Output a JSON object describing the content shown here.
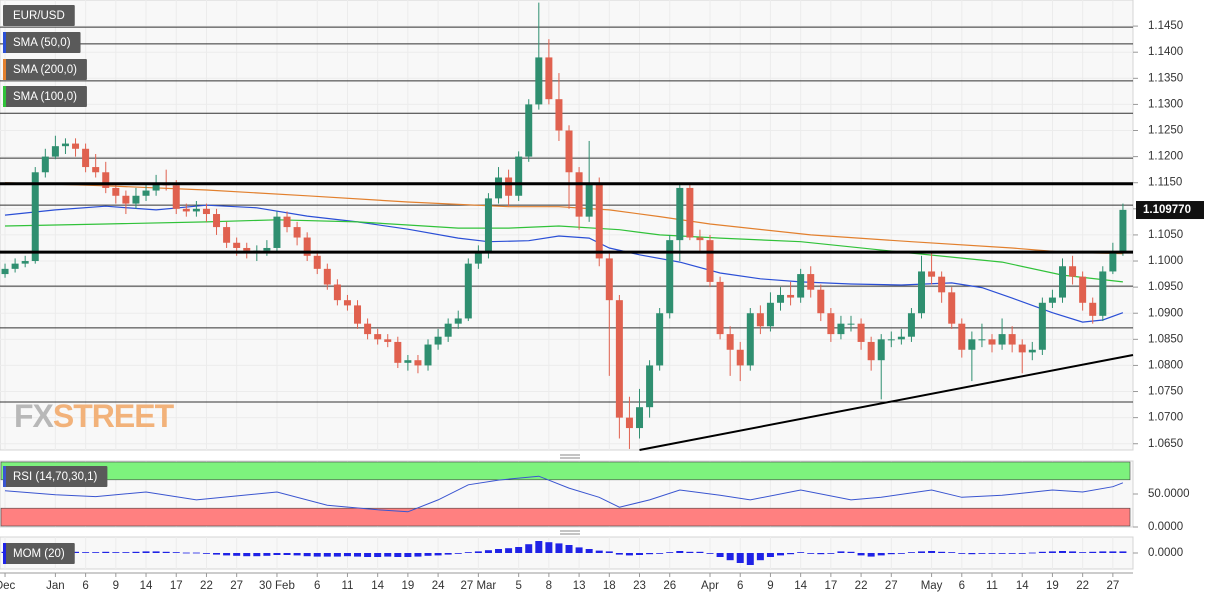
{
  "chart_data": [
    {
      "type": "candlestick",
      "series": {
        "name": "EUR/USD",
        "up_color": "#2f8f70",
        "down_color": "#e0614f",
        "open": [
          1.0975,
          1.0985,
          1.0995,
          1.1,
          1.117,
          1.12,
          1.122,
          1.1225,
          1.1215,
          1.118,
          1.117,
          1.114,
          1.1125,
          1.111,
          1.1125,
          1.1135,
          1.115,
          1.1145,
          1.11,
          1.1095,
          1.11,
          1.109,
          1.1065,
          1.1035,
          1.1025,
          1.102,
          1.102,
          1.1025,
          1.1085,
          1.1065,
          1.1045,
          1.101,
          1.0985,
          1.0955,
          1.0925,
          1.0915,
          1.088,
          1.086,
          1.085,
          1.0845,
          1.0805,
          1.081,
          1.08,
          1.084,
          1.0855,
          1.088,
          1.089,
          1.0995,
          1.1015,
          1.112,
          1.116,
          1.1125,
          1.12,
          1.13,
          1.139,
          1.131,
          1.125,
          1.117,
          1.1085,
          1.115,
          1.1005,
          1.0925,
          1.07,
          1.068,
          1.072,
          1.08,
          1.09,
          1.104,
          1.114,
          1.1045,
          1.104,
          1.096,
          1.086,
          1.083,
          1.08,
          1.09,
          1.0875,
          1.092,
          1.0935,
          1.093,
          1.0975,
          1.0945,
          1.09,
          1.086,
          1.088,
          1.088,
          1.0845,
          1.081,
          1.085,
          1.085,
          1.0855,
          1.09,
          1.098,
          1.097,
          1.094,
          1.088,
          1.083,
          1.085,
          1.085,
          1.084,
          1.086,
          1.084,
          1.0825,
          1.083,
          1.092,
          1.093,
          1.099,
          1.097,
          1.092,
          1.0895,
          1.098,
          1.1015
        ],
        "high": [
          1.0995,
          1.1005,
          1.101,
          1.118,
          1.1215,
          1.124,
          1.1235,
          1.1235,
          1.1225,
          1.1205,
          1.119,
          1.115,
          1.1135,
          1.114,
          1.115,
          1.1165,
          1.1175,
          1.1155,
          1.111,
          1.1115,
          1.111,
          1.11,
          1.1075,
          1.1045,
          1.1035,
          1.103,
          1.104,
          1.1095,
          1.1095,
          1.1075,
          1.1055,
          1.102,
          1.0995,
          1.0965,
          1.0935,
          1.0925,
          1.089,
          1.087,
          1.086,
          1.0855,
          1.082,
          1.082,
          1.085,
          1.087,
          1.089,
          1.0905,
          1.1005,
          1.103,
          1.113,
          1.118,
          1.1175,
          1.121,
          1.131,
          1.1495,
          1.1425,
          1.136,
          1.126,
          1.118,
          1.123,
          1.116,
          1.1015,
          1.0935,
          1.074,
          1.0755,
          1.081,
          1.091,
          1.105,
          1.115,
          1.1148,
          1.106,
          1.105,
          1.097,
          1.0875,
          1.0845,
          1.091,
          1.0915,
          1.094,
          1.095,
          1.096,
          1.0985,
          1.099,
          1.0955,
          1.091,
          1.0895,
          1.0895,
          1.089,
          1.0855,
          1.086,
          1.0865,
          1.087,
          1.091,
          1.101,
          1.1015,
          1.098,
          1.095,
          1.089,
          1.0865,
          1.088,
          1.086,
          1.089,
          1.0875,
          1.085,
          1.0845,
          1.093,
          1.0945,
          1.1005,
          1.101,
          1.098,
          1.093,
          1.099,
          1.1035,
          1.111
        ],
        "low": [
          1.0968,
          1.0978,
          1.0988,
          1.0995,
          1.116,
          1.1195,
          1.1205,
          1.12,
          1.117,
          1.116,
          1.113,
          1.111,
          1.109,
          1.11,
          1.1115,
          1.1125,
          1.1135,
          1.109,
          1.1085,
          1.1085,
          1.1075,
          1.105,
          1.1025,
          1.101,
          1.1005,
          1.1,
          1.101,
          1.1015,
          1.1055,
          1.103,
          1.1,
          1.0975,
          1.0945,
          1.0915,
          1.0905,
          1.087,
          1.085,
          1.084,
          1.0835,
          1.0795,
          1.079,
          1.0785,
          1.079,
          1.083,
          1.0845,
          1.087,
          1.0885,
          1.0985,
          1.1005,
          1.111,
          1.1105,
          1.1115,
          1.119,
          1.129,
          1.13,
          1.123,
          1.11,
          1.106,
          1.1075,
          1.099,
          1.078,
          1.066,
          1.064,
          1.066,
          1.07,
          1.079,
          1.089,
          1.1,
          1.104,
          1.102,
          1.095,
          1.085,
          1.078,
          1.077,
          1.079,
          1.086,
          1.0865,
          1.0905,
          1.0915,
          1.092,
          1.093,
          1.0885,
          1.0845,
          1.085,
          1.0865,
          1.083,
          1.079,
          1.0735,
          1.0835,
          1.084,
          1.0845,
          1.089,
          1.0955,
          1.092,
          1.087,
          1.0815,
          1.077,
          1.0835,
          1.0825,
          1.083,
          1.0825,
          1.0785,
          1.081,
          1.082,
          1.091,
          1.092,
          1.0955,
          1.0905,
          1.088,
          1.0885,
          1.0975,
          1.101
        ],
        "close": [
          1.0985,
          1.0995,
          1.1,
          1.117,
          1.12,
          1.122,
          1.1225,
          1.1215,
          1.118,
          1.117,
          1.114,
          1.1125,
          1.111,
          1.1125,
          1.1135,
          1.115,
          1.1145,
          1.11,
          1.1095,
          1.11,
          1.109,
          1.1065,
          1.1035,
          1.1025,
          1.102,
          1.102,
          1.1025,
          1.1085,
          1.1065,
          1.1045,
          1.101,
          1.0985,
          1.0955,
          1.0925,
          1.0915,
          1.088,
          1.086,
          1.085,
          1.0845,
          1.0805,
          1.081,
          1.08,
          1.084,
          1.0855,
          1.088,
          1.089,
          1.0995,
          1.1015,
          1.112,
          1.116,
          1.1125,
          1.12,
          1.13,
          1.139,
          1.131,
          1.125,
          1.117,
          1.1085,
          1.115,
          1.1005,
          1.0925,
          1.07,
          1.068,
          1.072,
          1.08,
          1.09,
          1.104,
          1.114,
          1.1045,
          1.104,
          1.096,
          1.086,
          1.083,
          1.08,
          1.09,
          1.0875,
          1.092,
          1.0935,
          1.093,
          1.0975,
          1.0945,
          1.09,
          1.086,
          1.088,
          1.088,
          1.0845,
          1.081,
          1.085,
          1.085,
          1.0855,
          1.09,
          1.098,
          1.097,
          1.094,
          1.088,
          1.083,
          1.085,
          1.085,
          1.084,
          1.086,
          1.084,
          1.0825,
          1.083,
          1.092,
          1.093,
          1.099,
          1.097,
          1.092,
          1.0895,
          1.098,
          1.1015,
          1.1098
        ]
      },
      "lines": [
        {
          "name": "SMA (50,0)",
          "color": "#2b4fd6",
          "x": [
            0,
            5,
            10,
            15,
            20,
            25,
            30,
            35,
            40,
            45,
            48,
            52,
            55,
            58,
            60,
            63,
            67,
            71,
            75,
            79,
            84,
            89,
            94,
            97,
            100,
            104,
            107,
            109,
            111
          ],
          "values": [
            1.1088,
            1.1098,
            1.1105,
            1.1098,
            1.1107,
            1.1102,
            1.1086,
            1.1075,
            1.1061,
            1.1044,
            1.1037,
            1.1039,
            1.1048,
            1.1044,
            1.1025,
            1.1012,
            1.0998,
            1.0977,
            1.0966,
            1.096,
            1.0956,
            1.0954,
            1.0958,
            1.0949,
            1.0929,
            1.0901,
            1.0883,
            1.0887,
            1.0901
          ]
        },
        {
          "name": "SMA (200,0)",
          "color": "#e2802e",
          "x": [
            0,
            10,
            20,
            30,
            40,
            50,
            55,
            60,
            65,
            70,
            80,
            90,
            100,
            105,
            111
          ],
          "values": [
            1.115,
            1.1144,
            1.1136,
            1.1125,
            1.1113,
            1.1104,
            1.1104,
            1.1098,
            1.1085,
            1.1071,
            1.105,
            1.1037,
            1.1025,
            1.1017,
            1.1014
          ]
        },
        {
          "name": "SMA (100,0)",
          "color": "#31c23a",
          "x": [
            0,
            10,
            20,
            27,
            35,
            40,
            45,
            50,
            55,
            61,
            65,
            71,
            79,
            89,
            99,
            105,
            111
          ],
          "values": [
            1.1067,
            1.1071,
            1.1075,
            1.1079,
            1.1075,
            1.1069,
            1.1063,
            1.1063,
            1.1067,
            1.106,
            1.105,
            1.1044,
            1.1037,
            1.1017,
            1.0998,
            1.0973,
            1.096
          ]
        }
      ],
      "levels": [
        1.1448,
        1.1416,
        1.1345,
        1.1283,
        1.1197,
        1.1107,
        1.0952,
        1.0872,
        1.073
      ],
      "key_levels": [
        1.1148,
        1.1017
      ],
      "trendline": {
        "x": [
          63,
          112
        ],
        "values": [
          1.0638,
          1.082
        ]
      },
      "last_price": {
        "value": 1.10977,
        "label": "1.109770"
      },
      "watermark": [
        "FX",
        "STREET"
      ],
      "ylim": [
        1.0638,
        1.15
      ],
      "yticks": [
        {
          "value": 1.065,
          "label": "1.0650"
        },
        {
          "value": 1.07,
          "label": "1.0700"
        },
        {
          "value": 1.075,
          "label": "1.0750"
        },
        {
          "value": 1.08,
          "label": "1.0800"
        },
        {
          "value": 1.085,
          "label": "1.0850"
        },
        {
          "value": 1.09,
          "label": "1.0900"
        },
        {
          "value": 1.095,
          "label": "1.0950"
        },
        {
          "value": 1.1,
          "label": "1.1000"
        },
        {
          "value": 1.105,
          "label": "1.1050"
        },
        {
          "value": 1.11,
          "label": "1.1100"
        },
        {
          "value": 1.115,
          "label": "1.1150"
        },
        {
          "value": 1.12,
          "label": "1.1200"
        },
        {
          "value": 1.125,
          "label": "1.1250"
        },
        {
          "value": 1.13,
          "label": "1.1300"
        },
        {
          "value": 1.135,
          "label": "1.1350"
        },
        {
          "value": 1.14,
          "label": "1.1400"
        },
        {
          "value": 1.145,
          "label": "1.1450"
        }
      ]
    },
    {
      "type": "line",
      "name": "RSI (14,70,30,1)",
      "color": "#3a55d0",
      "x": [
        0,
        5,
        9,
        14,
        19,
        27,
        32,
        37,
        40,
        43,
        46,
        49,
        53,
        56,
        59,
        61,
        64,
        67,
        71,
        74,
        79,
        84,
        87,
        92,
        95,
        99,
        104,
        107,
        110,
        111
      ],
      "values": [
        55,
        49,
        46,
        53,
        41,
        53,
        33,
        26,
        23,
        41,
        64,
        71,
        77,
        59,
        45,
        30,
        41,
        56,
        48,
        41,
        56,
        41,
        45,
        56,
        45,
        48,
        56,
        53,
        61,
        67
      ],
      "bands": [
        {
          "from": 70,
          "to": 100,
          "color": "#7df27d"
        },
        {
          "from": 0,
          "to": 30,
          "color": "#ff8080"
        }
      ],
      "ylim": [
        0,
        100
      ],
      "yticks": [
        {
          "value": 50,
          "label": "50.0000"
        },
        {
          "value": 0,
          "label": "0.0000"
        }
      ]
    },
    {
      "type": "bar",
      "name": "MOM (20)",
      "color": "#1f22e6",
      "values": [
        0.003,
        0.003,
        0.002,
        0.004,
        0.005,
        0.005,
        0.004,
        0.003,
        0.002,
        0.002,
        0.003,
        0.002,
        0.002,
        0.003,
        0.004,
        0.004,
        0.003,
        0.002,
        0.001,
        0.001,
        -0.002,
        -0.004,
        -0.006,
        -0.007,
        -0.008,
        -0.008,
        -0.007,
        -0.005,
        -0.005,
        -0.006,
        -0.008,
        -0.009,
        -0.009,
        -0.009,
        -0.008,
        -0.009,
        -0.01,
        -0.01,
        -0.009,
        -0.01,
        -0.01,
        -0.009,
        -0.007,
        -0.006,
        -0.004,
        -0.002,
        0.002,
        0.004,
        0.007,
        0.01,
        0.012,
        0.015,
        0.022,
        0.03,
        0.027,
        0.024,
        0.02,
        0.014,
        0.01,
        0.006,
        0.004,
        -0.004,
        -0.006,
        -0.005,
        -0.003,
        -0.002,
        0.002,
        0.005,
        0.003,
        0.003,
        -0.001,
        -0.01,
        -0.018,
        -0.025,
        -0.03,
        -0.018,
        -0.01,
        -0.006,
        -0.003,
        0.002,
        -0.002,
        -0.003,
        -0.002,
        0.004,
        0.003,
        -0.006,
        -0.009,
        -0.006,
        -0.003,
        -0.002,
        0.002,
        0.004,
        0.005,
        0.003,
        0.002,
        -0.002,
        -0.003,
        -0.002,
        -0.002,
        -0.001,
        -0.002,
        -0.002,
        0.001,
        0.003,
        0.004,
        0.005,
        0.004,
        0.002,
        0.003,
        0.004,
        0.004,
        0.004
      ],
      "ylim": [
        -0.04,
        0.04
      ],
      "yticks": [
        {
          "value": 0,
          "label": "0.0000"
        }
      ],
      "xlim": [
        -0.5,
        112
      ],
      "xticks": [
        {
          "value": 0,
          "label": "Dec"
        },
        {
          "value": 5,
          "label": "Jan"
        },
        {
          "value": 8,
          "label": "6"
        },
        {
          "value": 11,
          "label": "9"
        },
        {
          "value": 14,
          "label": "14"
        },
        {
          "value": 17,
          "label": "17"
        },
        {
          "value": 20,
          "label": "22"
        },
        {
          "value": 23,
          "label": "27"
        },
        {
          "value": 27,
          "label": "30 Feb"
        },
        {
          "value": 31,
          "label": "6"
        },
        {
          "value": 34,
          "label": "11"
        },
        {
          "value": 37,
          "label": "14"
        },
        {
          "value": 40,
          "label": "19"
        },
        {
          "value": 43,
          "label": "24"
        },
        {
          "value": 47,
          "label": "27 Mar"
        },
        {
          "value": 51,
          "label": "5"
        },
        {
          "value": 54,
          "label": "8"
        },
        {
          "value": 57,
          "label": "13"
        },
        {
          "value": 60,
          "label": "18"
        },
        {
          "value": 63,
          "label": "23"
        },
        {
          "value": 66,
          "label": "26"
        },
        {
          "value": 70,
          "label": "Apr"
        },
        {
          "value": 73,
          "label": "6"
        },
        {
          "value": 76,
          "label": "9"
        },
        {
          "value": 79,
          "label": "14"
        },
        {
          "value": 82,
          "label": "17"
        },
        {
          "value": 85,
          "label": "22"
        },
        {
          "value": 88,
          "label": "27"
        },
        {
          "value": 92,
          "label": "May"
        },
        {
          "value": 95,
          "label": "6"
        },
        {
          "value": 98,
          "label": "11"
        },
        {
          "value": 101,
          "label": "14"
        },
        {
          "value": 104,
          "label": "19"
        },
        {
          "value": 107,
          "label": "22"
        },
        {
          "value": 110,
          "label": "27"
        }
      ]
    }
  ]
}
